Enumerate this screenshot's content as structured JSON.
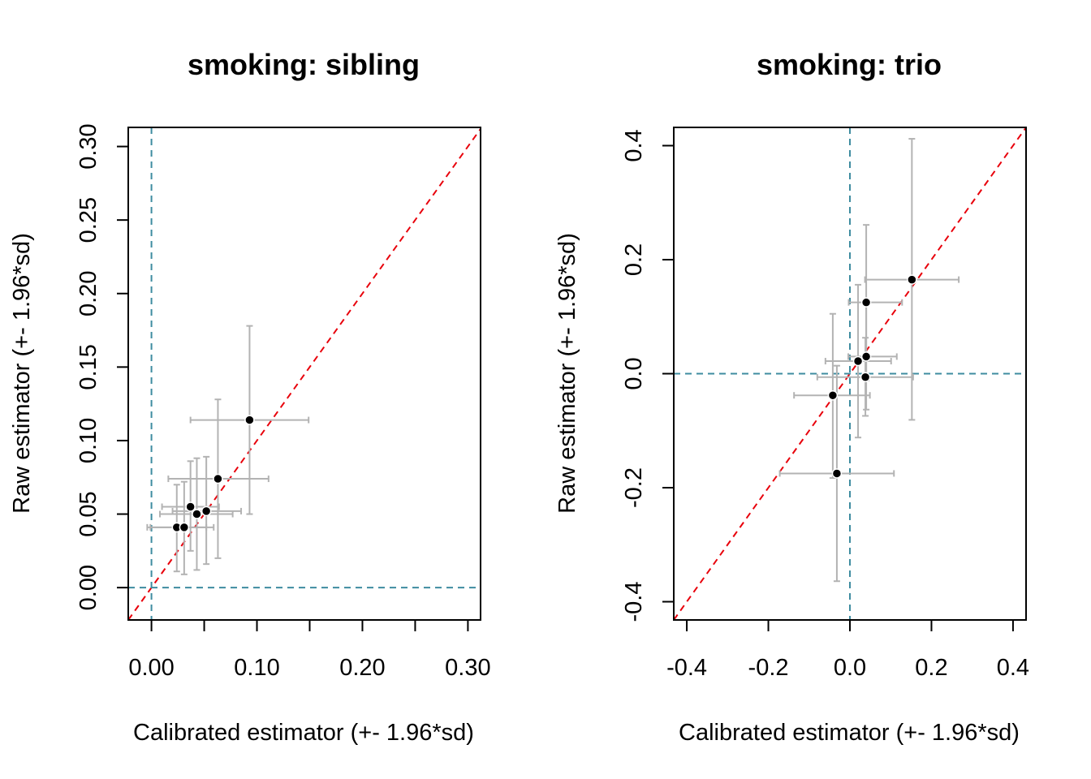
{
  "colors": {
    "point": "#000000",
    "point_border": "#ffffff",
    "error_bar": "#b3b3b3",
    "identity_line": "#e8000b",
    "zero_line": "#3e8ca0",
    "frame": "#000000",
    "background": "#ffffff"
  },
  "chart_data": [
    {
      "type": "scatter",
      "title": "smoking: sibling",
      "xlabel": "Calibrated estimator (+- 1.96*sd)",
      "ylabel": "Raw estimator (+- 1.96*sd)",
      "xlim": [
        -0.022,
        0.312
      ],
      "ylim": [
        -0.022,
        0.313
      ],
      "xticks": [
        0.0,
        0.05,
        0.1,
        0.15,
        0.2,
        0.25,
        0.3
      ],
      "xtick_labels": [
        "0.00",
        "",
        "0.10",
        "",
        "0.20",
        "",
        "0.30"
      ],
      "yticks": [
        0.0,
        0.05,
        0.1,
        0.15,
        0.2,
        0.25,
        0.3
      ],
      "ytick_labels": [
        "0.00",
        "0.05",
        "0.10",
        "0.15",
        "0.20",
        "0.25",
        "0.30"
      ],
      "reference_lines": {
        "identity": true,
        "x_zero": true,
        "y_zero": true
      },
      "points": [
        {
          "x": 0.093,
          "y": 0.114,
          "x_low": 0.037,
          "x_high": 0.149,
          "y_low": 0.05,
          "y_high": 0.178
        },
        {
          "x": 0.063,
          "y": 0.074,
          "x_low": 0.016,
          "x_high": 0.111,
          "y_low": 0.02,
          "y_high": 0.128
        },
        {
          "x": 0.037,
          "y": 0.055,
          "x_low": 0.01,
          "x_high": 0.064,
          "y_low": 0.025,
          "y_high": 0.086
        },
        {
          "x": 0.052,
          "y": 0.052,
          "x_low": 0.02,
          "x_high": 0.085,
          "y_low": 0.016,
          "y_high": 0.089
        },
        {
          "x": 0.043,
          "y": 0.05,
          "x_low": 0.008,
          "x_high": 0.077,
          "y_low": 0.012,
          "y_high": 0.088
        },
        {
          "x": 0.024,
          "y": 0.041,
          "x_low": -0.004,
          "x_high": 0.052,
          "y_low": 0.011,
          "y_high": 0.07
        },
        {
          "x": 0.031,
          "y": 0.041,
          "x_low": -0.001,
          "x_high": 0.059,
          "y_low": 0.009,
          "y_high": 0.072
        }
      ]
    },
    {
      "type": "scatter",
      "title": "smoking: trio",
      "xlabel": "Calibrated estimator (+- 1.96*sd)",
      "ylabel": "Raw estimator (+- 1.96*sd)",
      "xlim": [
        -0.432,
        0.432
      ],
      "ylim": [
        -0.432,
        0.432
      ],
      "xticks": [
        -0.4,
        -0.2,
        0.0,
        0.2,
        0.4
      ],
      "xtick_labels": [
        "-0.4",
        "-0.2",
        "0.0",
        "0.2",
        "0.4"
      ],
      "yticks": [
        -0.4,
        -0.2,
        0.0,
        0.2,
        0.4
      ],
      "ytick_labels": [
        "-0.4",
        "-0.2",
        "0.0",
        "0.2",
        "0.4"
      ],
      "reference_lines": {
        "identity": true,
        "x_zero": true,
        "y_zero": true
      },
      "points": [
        {
          "x": 0.152,
          "y": 0.165,
          "x_low": 0.037,
          "x_high": 0.267,
          "y_low": -0.081,
          "y_high": 0.412
        },
        {
          "x": 0.04,
          "y": 0.125,
          "x_low": -0.003,
          "x_high": 0.128,
          "y_low": -0.012,
          "y_high": 0.261
        },
        {
          "x": 0.04,
          "y": 0.03,
          "x_low": -0.004,
          "x_high": 0.115,
          "y_low": -0.063,
          "y_high": 0.13
        },
        {
          "x": 0.02,
          "y": 0.022,
          "x_low": -0.06,
          "x_high": 0.101,
          "y_low": -0.112,
          "y_high": 0.156
        },
        {
          "x": 0.038,
          "y": -0.006,
          "x_low": -0.08,
          "x_high": 0.155,
          "y_low": -0.074,
          "y_high": 0.063
        },
        {
          "x": -0.042,
          "y": -0.038,
          "x_low": -0.137,
          "x_high": 0.049,
          "y_low": -0.183,
          "y_high": 0.105
        },
        {
          "x": -0.032,
          "y": -0.175,
          "x_low": -0.172,
          "x_high": 0.108,
          "y_low": -0.364,
          "y_high": 0.014
        }
      ]
    }
  ]
}
